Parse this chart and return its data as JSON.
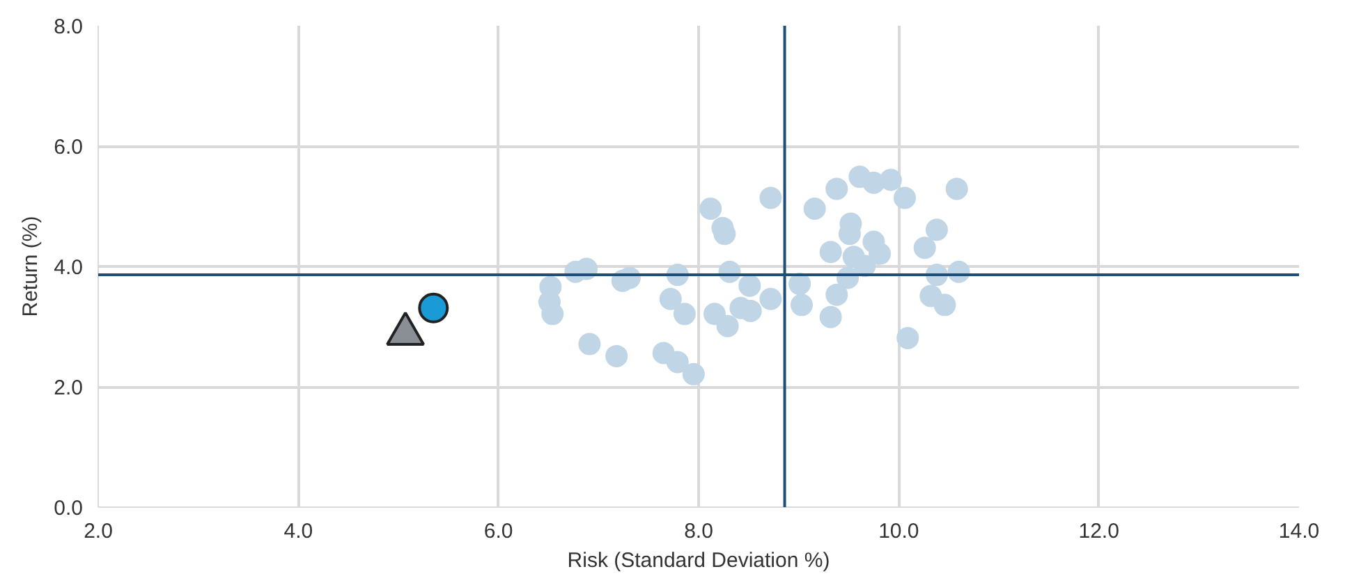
{
  "chart_data": {
    "type": "scatter",
    "xlabel": "Risk (Standard Deviation %)",
    "ylabel": "Return (%)",
    "xlim": [
      2,
      14
    ],
    "ylim": [
      0,
      8
    ],
    "xticks": [
      {
        "value": 2,
        "label": "2.0"
      },
      {
        "value": 4,
        "label": "4.0"
      },
      {
        "value": 6,
        "label": "6.0"
      },
      {
        "value": 8,
        "label": "8.0"
      },
      {
        "value": 10,
        "label": "10.0"
      },
      {
        "value": 12,
        "label": "12.0"
      },
      {
        "value": 14,
        "label": "14.0"
      }
    ],
    "yticks": [
      {
        "value": 0,
        "label": "0.0"
      },
      {
        "value": 2,
        "label": "2.0"
      },
      {
        "value": 4,
        "label": "4.0"
      },
      {
        "value": 6,
        "label": "6.0"
      },
      {
        "value": 8,
        "label": "8.0"
      }
    ],
    "grid": true,
    "ref_lines": [
      {
        "axis": "x",
        "value": 8.86,
        "color": "#1f4e79"
      },
      {
        "axis": "y",
        "value": 3.86,
        "color": "#1f4e79"
      }
    ],
    "series": [
      {
        "color": "#c0d5e6",
        "marker": "circle",
        "x": [
          8.12,
          8.24,
          8.26,
          8.72,
          9.16,
          9.38,
          9.61,
          9.75,
          9.92,
          10.06,
          10.58,
          9.52,
          9.51,
          9.75,
          9.81,
          9.32,
          9.55,
          9.66,
          10.26,
          10.38,
          10.38,
          10.6,
          9.49,
          9.01,
          8.72,
          9.38,
          10.32,
          10.46,
          9.03,
          9.32,
          10.09,
          6.77,
          6.88,
          6.52,
          6.51,
          6.54,
          7.24,
          7.31,
          7.79,
          8.31,
          8.51,
          7.72,
          7.86,
          8.16,
          8.29,
          8.42,
          8.52,
          6.91,
          7.18,
          7.65,
          7.79,
          7.95
        ],
        "values": [
          4.96,
          4.64,
          4.54,
          5.14,
          4.96,
          5.29,
          5.49,
          5.39,
          5.44,
          5.14,
          5.29,
          4.71,
          4.54,
          4.41,
          4.21,
          4.24,
          4.16,
          4.01,
          4.31,
          4.61,
          3.86,
          3.91,
          3.81,
          3.71,
          3.46,
          3.53,
          3.51,
          3.36,
          3.36,
          3.16,
          2.81,
          3.91,
          3.96,
          3.66,
          3.41,
          3.21,
          3.76,
          3.81,
          3.86,
          3.91,
          3.68,
          3.46,
          3.21,
          3.21,
          3.01,
          3.31,
          3.26,
          2.71,
          2.51,
          2.56,
          2.41,
          2.21
        ]
      },
      {
        "color": "#8a8f96",
        "marker": "triangle",
        "x": [
          5.07
        ],
        "values": [
          2.88
        ]
      },
      {
        "color": "#1a9ad6",
        "marker": "circle",
        "x": [
          5.35
        ],
        "values": [
          3.31
        ]
      }
    ]
  }
}
